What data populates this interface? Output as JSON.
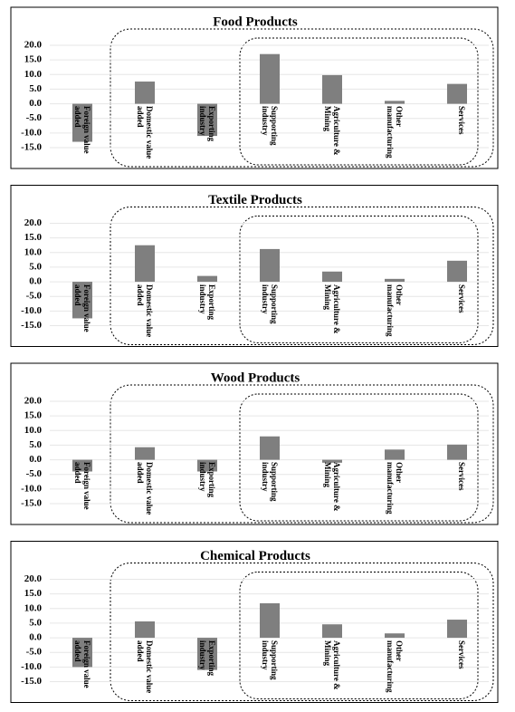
{
  "chart_data": [
    {
      "type": "bar",
      "title": "Food Products",
      "categories": [
        "Foreign value added",
        "Domestic value added",
        "Exporting industry",
        "Supporting industry",
        "Agriculture & Mining",
        "Other manufacturing",
        "Services"
      ],
      "values": [
        -13,
        7.6,
        -11,
        17,
        9.8,
        1,
        6.8
      ],
      "color": "#7f7f7f",
      "ylim": [
        -15,
        20
      ],
      "yticks": [
        {
          "value": 20,
          "label": "20.0"
        },
        {
          "value": 15,
          "label": "15.0"
        },
        {
          "value": 10,
          "label": "10.0"
        },
        {
          "value": 5,
          "label": "5.0"
        },
        {
          "value": 0,
          "label": "0.0"
        },
        {
          "value": -5,
          "label": "-5.0"
        },
        {
          "value": -10,
          "label": "-10.0"
        },
        {
          "value": -15,
          "label": "-15.0"
        }
      ]
    },
    {
      "type": "bar",
      "title": "Textile Products",
      "categories": [
        "Foreign value added",
        "Domestic value added",
        "Exporting industry",
        "Supporting industry",
        "Agriculture & Mining",
        "Other manufacturing",
        "Services"
      ],
      "values": [
        -12.5,
        12.5,
        2,
        11.2,
        3.5,
        1,
        7.2
      ],
      "color": "#7f7f7f",
      "ylim": [
        -15,
        20
      ],
      "yticks": [
        {
          "value": 20,
          "label": "20.0"
        },
        {
          "value": 15,
          "label": "15.0"
        },
        {
          "value": 10,
          "label": "10.0"
        },
        {
          "value": 5,
          "label": "5.0"
        },
        {
          "value": 0,
          "label": "0.0"
        },
        {
          "value": -5,
          "label": "-5.0"
        },
        {
          "value": -10,
          "label": "-10.0"
        },
        {
          "value": -15,
          "label": "-15.0"
        }
      ]
    },
    {
      "type": "bar",
      "title": "Wood Products",
      "categories": [
        "Foreign value added",
        "Domestic value added",
        "Exporting industry",
        "Supporting industry",
        "Agriculture & Mining",
        "Other manufacturing",
        "Services"
      ],
      "values": [
        -4,
        4.3,
        -4,
        8,
        -1,
        3.5,
        5.2
      ],
      "color": "#7f7f7f",
      "ylim": [
        -15,
        20
      ],
      "yticks": [
        {
          "value": 20,
          "label": "20.0"
        },
        {
          "value": 15,
          "label": "15.0"
        },
        {
          "value": 10,
          "label": "10.0"
        },
        {
          "value": 5,
          "label": "5.0"
        },
        {
          "value": 0,
          "label": "0.0"
        },
        {
          "value": -5,
          "label": "-5.0"
        },
        {
          "value": -10,
          "label": "-10.0"
        },
        {
          "value": -15,
          "label": "-15.0"
        }
      ]
    },
    {
      "type": "bar",
      "title": "Chemical Products",
      "categories": [
        "Foreign value added",
        "Domestic value added",
        "Exporting industry",
        "Supporting industry",
        "Agriculture & Mining",
        "Other manufacturing",
        "Services"
      ],
      "values": [
        -10,
        5.6,
        -11,
        11.8,
        4.6,
        1.5,
        6.2
      ],
      "color": "#7f7f7f",
      "ylim": [
        -15,
        20
      ],
      "yticks": [
        {
          "value": 20,
          "label": "20.0"
        },
        {
          "value": 15,
          "label": "15.0"
        },
        {
          "value": 10,
          "label": "10.0"
        },
        {
          "value": 5,
          "label": "5.0"
        },
        {
          "value": 0,
          "label": "0.0"
        },
        {
          "value": -5,
          "label": "-5.0"
        },
        {
          "value": -10,
          "label": "-10.0"
        },
        {
          "value": -15,
          "label": "-15.0"
        }
      ]
    }
  ]
}
